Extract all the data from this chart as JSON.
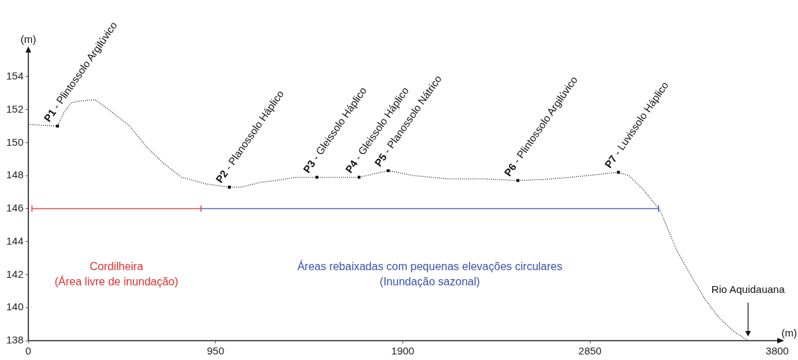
{
  "chart_data": {
    "type": "line",
    "xlabel": "(m)",
    "ylabel": "(m)",
    "xlim": [
      0,
      3800
    ],
    "xticks": [
      0,
      950,
      1900,
      2850,
      3800
    ],
    "ylim": [
      138,
      155.5
    ],
    "yticks": [
      138,
      140,
      142,
      144,
      146,
      148,
      150,
      152,
      154
    ],
    "grid": false,
    "legend": false,
    "x": [
      0,
      148,
      179,
      215,
      250,
      338,
      408,
      514,
      602,
      690,
      778,
      901,
      1020,
      1077,
      1182,
      1253,
      1358,
      1464,
      1678,
      1826,
      1956,
      2132,
      2308,
      2484,
      2660,
      2836,
      2994,
      3047,
      3117,
      3205,
      3240,
      3293,
      3364,
      3434,
      3504,
      3575,
      3652
    ],
    "series": [
      {
        "type": "line",
        "color": "#000000",
        "line_style": "dotted",
        "marker": "none",
        "values": [
          151.1,
          151.0,
          151.8,
          152.4,
          152.5,
          152.6,
          152.0,
          151.0,
          149.7,
          148.7,
          147.9,
          147.5,
          147.3,
          147.3,
          147.6,
          147.7,
          147.9,
          147.9,
          147.9,
          148.3,
          148.0,
          147.8,
          147.8,
          147.7,
          147.8,
          148.0,
          148.2,
          148.0,
          147.2,
          145.9,
          144.9,
          143.4,
          141.9,
          140.5,
          139.4,
          138.6,
          138.0
        ]
      },
      {
        "type": "scatter",
        "color": "#000000",
        "marker": "square",
        "x": [
          148,
          1020,
          1464,
          1678,
          1826,
          2484,
          2994
        ],
        "values": [
          151.0,
          147.3,
          147.9,
          147.9,
          148.3,
          147.7,
          148.2
        ]
      },
      {
        "type": "line",
        "name": "Cordilheira\n(Área livre de inundação)",
        "color": "#e03030",
        "line_style": "solid",
        "marker": "none",
        "x": [
          18,
          876
        ],
        "values": [
          146,
          146
        ],
        "errors": [
          0.2,
          0.2
        ]
      },
      {
        "type": "line",
        "name": "Áreas rebaixadas com pequenas elevações circulares\n(Inundação sazonal)",
        "color": "#3a50b0",
        "line_style": "solid",
        "marker": "none",
        "x": [
          876,
          3198
        ],
        "values": [
          146,
          146
        ],
        "errors": [
          null,
          0.2
        ]
      }
    ],
    "annotations": [
      {
        "text": "P1 - Plintossolo Argilúvico",
        "x": 148,
        "y": 151.0
      },
      {
        "text": "P2 - Planossolo Háplico",
        "x": 1020,
        "y": 147.3
      },
      {
        "text": "P3 - Gleissolo Háplico",
        "x": 1464,
        "y": 147.9
      },
      {
        "text": "P4 - Gleissolo Háplico",
        "x": 1678,
        "y": 147.9
      },
      {
        "text": "P5 - Planossolo Nátrico",
        "x": 1826,
        "y": 148.3
      },
      {
        "text": "P6 - Plintossolo Argilúvico",
        "x": 2484,
        "y": 147.7
      },
      {
        "text": "P7 - Luvissolo Háplico",
        "x": 2994,
        "y": 148.2
      },
      "Rio Aquidauana"
    ]
  }
}
